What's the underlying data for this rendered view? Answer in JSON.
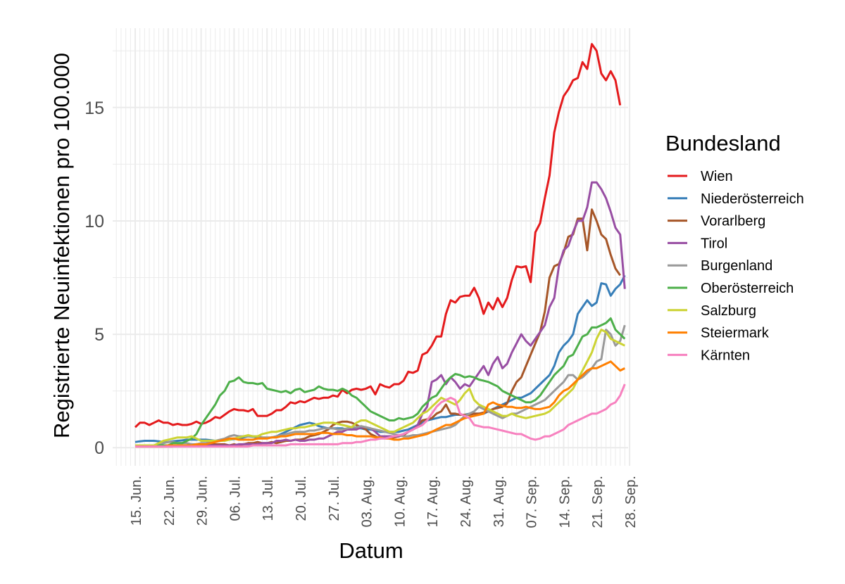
{
  "chart_data": {
    "type": "line",
    "xlabel": "Datum",
    "ylabel": "Registrierte Neuinfektionen pro 100.000",
    "ylim": [
      -0.8,
      18.5
    ],
    "y_ticks": [
      0,
      5,
      10,
      15
    ],
    "x_start_date": "2020-06-15",
    "x_end_date": "2020-09-26",
    "x_ticks": [
      "15. Jun.",
      "22. Jun.",
      "29. Jun.",
      "06. Jul.",
      "13. Jul.",
      "20. Jul.",
      "27. Jul.",
      "03. Aug.",
      "10. Aug.",
      "17. Aug.",
      "24. Aug.",
      "31. Aug.",
      "07. Sep.",
      "14. Sep.",
      "21. Sep.",
      "28. Sep."
    ],
    "grid": true,
    "legend": {
      "title": "Bundesland",
      "position": "right"
    },
    "series": [
      {
        "name": "Wien",
        "color": "#e41a1c",
        "values": [
          0.9,
          1.1,
          1.1,
          1.0,
          1.1,
          1.2,
          1.1,
          1.1,
          1.0,
          1.05,
          1.0,
          1.0,
          1.05,
          1.15,
          1.05,
          1.1,
          1.2,
          1.35,
          1.3,
          1.45,
          1.6,
          1.7,
          1.65,
          1.65,
          1.6,
          1.7,
          1.4,
          1.4,
          1.4,
          1.5,
          1.65,
          1.65,
          1.8,
          2.0,
          1.95,
          2.05,
          2.0,
          2.1,
          2.2,
          2.15,
          2.2,
          2.2,
          2.3,
          2.25,
          2.55,
          2.4,
          2.55,
          2.6,
          2.55,
          2.6,
          2.7,
          2.35,
          2.8,
          2.7,
          2.65,
          2.8,
          2.8,
          2.95,
          3.35,
          3.3,
          3.4,
          4.1,
          4.2,
          4.5,
          4.9,
          4.9,
          5.9,
          6.5,
          6.4,
          6.65,
          6.7,
          6.7,
          7.05,
          6.6,
          5.9,
          6.4,
          6.1,
          6.6,
          6.2,
          6.6,
          7.4,
          8.0,
          7.95,
          8.0,
          7.3,
          9.5,
          9.9,
          11.0,
          12.0,
          13.9,
          14.8,
          15.5,
          15.8,
          16.2,
          16.3,
          17.0,
          16.7,
          17.8,
          17.5,
          16.5,
          16.2,
          16.6,
          16.2,
          15.1
        ]
      },
      {
        "name": "Niederösterreich",
        "color": "#377eb8",
        "values": [
          0.25,
          0.28,
          0.3,
          0.3,
          0.3,
          0.28,
          0.25,
          0.25,
          0.28,
          0.3,
          0.32,
          0.35,
          0.35,
          0.35,
          0.35,
          0.35,
          0.33,
          0.3,
          0.3,
          0.32,
          0.35,
          0.38,
          0.4,
          0.45,
          0.5,
          0.48,
          0.45,
          0.42,
          0.42,
          0.45,
          0.5,
          0.6,
          0.7,
          0.8,
          0.9,
          1.0,
          1.05,
          1.1,
          1.05,
          0.95,
          0.9,
          0.85,
          0.85,
          0.85,
          0.85,
          0.8,
          0.8,
          0.85,
          0.85,
          0.8,
          0.8,
          0.75,
          0.7,
          0.7,
          0.7,
          0.7,
          0.7,
          0.75,
          0.8,
          0.9,
          1.0,
          1.1,
          1.2,
          1.25,
          1.3,
          1.35,
          1.35,
          1.4,
          1.45,
          1.45,
          1.45,
          1.5,
          1.5,
          1.5,
          1.5,
          1.6,
          1.7,
          1.8,
          1.9,
          2.0,
          2.1,
          2.2,
          2.2,
          2.3,
          2.4,
          2.6,
          2.8,
          3.0,
          3.2,
          3.6,
          4.2,
          4.5,
          4.7,
          5.0,
          5.9,
          6.2,
          6.5,
          6.25,
          6.4,
          7.25,
          7.2,
          6.7,
          7.0,
          7.2,
          7.6
        ]
      },
      {
        "name": "Vorarlberg",
        "color": "#a65628",
        "values": [
          0.05,
          0.05,
          0.05,
          0.05,
          0.05,
          0.05,
          0.05,
          0.05,
          0.05,
          0.1,
          0.1,
          0.1,
          0.1,
          0.1,
          0.15,
          0.15,
          0.15,
          0.15,
          0.15,
          0.15,
          0.1,
          0.15,
          0.1,
          0.15,
          0.2,
          0.2,
          0.25,
          0.2,
          0.2,
          0.25,
          0.2,
          0.25,
          0.3,
          0.3,
          0.35,
          0.35,
          0.4,
          0.5,
          0.55,
          0.6,
          0.7,
          0.8,
          1.0,
          1.1,
          1.15,
          1.15,
          1.1,
          1.0,
          0.9,
          0.8,
          0.6,
          0.5,
          0.4,
          0.45,
          0.4,
          0.45,
          0.5,
          0.55,
          0.7,
          0.8,
          1.0,
          1.2,
          1.25,
          1.3,
          1.5,
          1.6,
          1.9,
          1.5,
          1.5,
          1.45,
          1.45,
          1.45,
          1.5,
          1.5,
          1.55,
          1.6,
          1.7,
          1.75,
          1.8,
          1.95,
          2.5,
          2.9,
          3.1,
          3.6,
          4.1,
          4.6,
          5.1,
          6.0,
          7.5,
          8.0,
          8.1,
          8.6,
          9.3,
          9.4,
          10.1,
          10.1,
          8.7,
          10.5,
          10.0,
          9.4,
          9.2,
          8.5,
          7.9,
          7.6
        ]
      },
      {
        "name": "Tirol",
        "color": "#984ea3",
        "values": [
          0.1,
          0.1,
          0.1,
          0.1,
          0.1,
          0.1,
          0.1,
          0.1,
          0.1,
          0.1,
          0.1,
          0.1,
          0.1,
          0.1,
          0.1,
          0.1,
          0.1,
          0.1,
          0.1,
          0.1,
          0.1,
          0.1,
          0.15,
          0.15,
          0.15,
          0.15,
          0.15,
          0.2,
          0.2,
          0.2,
          0.3,
          0.3,
          0.35,
          0.3,
          0.35,
          0.3,
          0.3,
          0.35,
          0.35,
          0.4,
          0.4,
          0.5,
          0.6,
          0.7,
          0.7,
          0.8,
          0.8,
          0.8,
          0.9,
          0.9,
          0.85,
          0.7,
          0.5,
          0.5,
          0.5,
          0.5,
          0.5,
          0.6,
          0.7,
          0.8,
          1.0,
          1.5,
          1.8,
          2.9,
          3.0,
          3.2,
          2.8,
          3.1,
          2.9,
          2.6,
          2.8,
          2.7,
          3.0,
          3.3,
          3.6,
          3.2,
          3.7,
          4.0,
          3.5,
          3.7,
          4.2,
          4.6,
          5.0,
          4.7,
          4.5,
          4.8,
          5.1,
          5.4,
          6.2,
          6.6,
          8.0,
          8.7,
          8.9,
          9.5,
          10.0,
          10.0,
          10.6,
          11.7,
          11.7,
          11.4,
          11.0,
          10.4,
          9.7,
          9.4,
          7.0
        ]
      },
      {
        "name": "Burgenland",
        "color": "#999999",
        "values": [
          0.1,
          0.1,
          0.1,
          0.1,
          0.1,
          0.1,
          0.2,
          0.25,
          0.25,
          0.2,
          0.2,
          0.2,
          0.15,
          0.15,
          0.2,
          0.2,
          0.25,
          0.3,
          0.35,
          0.4,
          0.5,
          0.55,
          0.5,
          0.5,
          0.5,
          0.5,
          0.5,
          0.45,
          0.45,
          0.45,
          0.5,
          0.55,
          0.6,
          0.65,
          0.7,
          0.7,
          0.7,
          0.75,
          0.75,
          0.8,
          0.85,
          0.85,
          0.85,
          0.8,
          0.8,
          0.85,
          0.9,
          0.9,
          0.95,
          0.9,
          0.85,
          0.8,
          0.75,
          0.7,
          0.65,
          0.6,
          0.55,
          0.5,
          0.5,
          0.55,
          0.55,
          0.6,
          0.65,
          0.7,
          0.75,
          0.8,
          0.85,
          0.9,
          1.0,
          1.2,
          1.4,
          1.5,
          1.6,
          1.8,
          1.7,
          1.6,
          1.5,
          1.4,
          1.3,
          1.4,
          1.5,
          1.5,
          1.6,
          1.7,
          1.8,
          1.9,
          2.0,
          2.1,
          2.3,
          2.5,
          2.7,
          2.9,
          3.2,
          3.2,
          3.0,
          3.1,
          3.3,
          3.5,
          3.8,
          3.9,
          5.2,
          5.0,
          4.5,
          4.7,
          5.4
        ]
      },
      {
        "name": "Oberösterreich",
        "color": "#4daf4a",
        "values": [
          0.1,
          0.1,
          0.1,
          0.1,
          0.1,
          0.1,
          0.1,
          0.1,
          0.2,
          0.2,
          0.2,
          0.3,
          0.4,
          0.6,
          1.0,
          1.3,
          1.6,
          1.9,
          2.3,
          2.5,
          2.9,
          2.95,
          3.1,
          2.9,
          2.85,
          2.85,
          2.8,
          2.85,
          2.6,
          2.55,
          2.5,
          2.45,
          2.5,
          2.4,
          2.55,
          2.6,
          2.45,
          2.5,
          2.55,
          2.7,
          2.6,
          2.55,
          2.55,
          2.5,
          2.6,
          2.5,
          2.3,
          2.2,
          2.0,
          1.8,
          1.6,
          1.5,
          1.4,
          1.3,
          1.2,
          1.2,
          1.3,
          1.25,
          1.3,
          1.35,
          1.5,
          1.8,
          2.0,
          2.2,
          2.3,
          2.6,
          2.9,
          3.1,
          3.25,
          3.2,
          3.1,
          3.15,
          3.1,
          3.0,
          2.95,
          2.9,
          2.8,
          2.7,
          2.5,
          2.4,
          2.3,
          2.2,
          2.1,
          2.0,
          2.0,
          2.1,
          2.3,
          2.6,
          2.9,
          3.2,
          3.4,
          3.6,
          4.0,
          4.1,
          4.5,
          4.9,
          5.0,
          5.3,
          5.3,
          5.4,
          5.5,
          5.7,
          5.2,
          5.0,
          4.8
        ]
      },
      {
        "name": "Salzburg",
        "color": "#ccd333",
        "values": [
          0.1,
          0.1,
          0.1,
          0.1,
          0.1,
          0.2,
          0.3,
          0.35,
          0.4,
          0.45,
          0.45,
          0.45,
          0.5,
          0.4,
          0.3,
          0.3,
          0.3,
          0.3,
          0.3,
          0.3,
          0.35,
          0.4,
          0.45,
          0.5,
          0.55,
          0.5,
          0.5,
          0.6,
          0.65,
          0.7,
          0.7,
          0.75,
          0.8,
          0.85,
          0.85,
          0.9,
          0.9,
          0.95,
          1.0,
          1.05,
          1.1,
          1.1,
          1.1,
          1.05,
          1.0,
          0.95,
          0.9,
          1.1,
          1.2,
          1.2,
          1.1,
          1.0,
          0.9,
          0.8,
          0.7,
          0.7,
          0.8,
          0.9,
          1.0,
          1.1,
          1.3,
          1.5,
          1.6,
          1.8,
          2.0,
          2.2,
          2.1,
          2.0,
          1.9,
          2.1,
          2.4,
          2.6,
          2.1,
          1.9,
          1.8,
          1.7,
          1.6,
          1.5,
          1.4,
          1.4,
          1.5,
          1.4,
          1.35,
          1.3,
          1.35,
          1.4,
          1.45,
          1.5,
          1.6,
          1.8,
          2.0,
          2.2,
          2.4,
          2.6,
          3.0,
          3.4,
          3.8,
          4.2,
          4.8,
          5.2,
          5.1,
          4.8,
          4.7,
          4.6,
          4.5
        ]
      },
      {
        "name": "Steiermark",
        "color": "#ff7f00",
        "values": [
          0.05,
          0.05,
          0.05,
          0.05,
          0.05,
          0.05,
          0.05,
          0.1,
          0.1,
          0.1,
          0.1,
          0.1,
          0.1,
          0.15,
          0.15,
          0.15,
          0.2,
          0.25,
          0.3,
          0.35,
          0.4,
          0.4,
          0.35,
          0.35,
          0.35,
          0.35,
          0.4,
          0.4,
          0.4,
          0.45,
          0.45,
          0.5,
          0.5,
          0.55,
          0.6,
          0.6,
          0.6,
          0.6,
          0.6,
          0.65,
          0.65,
          0.65,
          0.6,
          0.6,
          0.6,
          0.55,
          0.55,
          0.5,
          0.5,
          0.5,
          0.5,
          0.45,
          0.45,
          0.4,
          0.4,
          0.35,
          0.35,
          0.4,
          0.4,
          0.45,
          0.5,
          0.55,
          0.6,
          0.7,
          0.8,
          0.9,
          1.0,
          1.0,
          1.1,
          1.2,
          1.3,
          1.35,
          1.4,
          1.45,
          1.5,
          1.9,
          2.0,
          1.9,
          1.85,
          1.8,
          1.8,
          1.75,
          1.75,
          1.8,
          1.75,
          1.7,
          1.7,
          1.75,
          1.8,
          2.0,
          2.3,
          2.5,
          2.6,
          2.8,
          3.0,
          3.2,
          3.4,
          3.5,
          3.5,
          3.6,
          3.7,
          3.8,
          3.6,
          3.4,
          3.5
        ]
      },
      {
        "name": "Kärnten",
        "color": "#f781bf",
        "values": [
          0.05,
          0.05,
          0.05,
          0.05,
          0.05,
          0.05,
          0.05,
          0.05,
          0.05,
          0.05,
          0.05,
          0.05,
          0.05,
          0.05,
          0.05,
          0.05,
          0.05,
          0.05,
          0.05,
          0.05,
          0.05,
          0.05,
          0.05,
          0.05,
          0.05,
          0.1,
          0.1,
          0.1,
          0.1,
          0.1,
          0.1,
          0.1,
          0.1,
          0.15,
          0.15,
          0.15,
          0.15,
          0.15,
          0.15,
          0.15,
          0.15,
          0.15,
          0.15,
          0.15,
          0.2,
          0.2,
          0.2,
          0.25,
          0.25,
          0.3,
          0.35,
          0.35,
          0.4,
          0.4,
          0.45,
          0.5,
          0.55,
          0.6,
          0.7,
          0.8,
          0.9,
          1.0,
          1.2,
          1.5,
          1.8,
          2.0,
          2.1,
          2.2,
          2.1,
          1.5,
          1.4,
          1.3,
          1.0,
          0.95,
          0.9,
          0.9,
          0.85,
          0.8,
          0.75,
          0.7,
          0.65,
          0.6,
          0.6,
          0.5,
          0.4,
          0.35,
          0.4,
          0.5,
          0.5,
          0.6,
          0.7,
          0.8,
          1.0,
          1.1,
          1.2,
          1.3,
          1.4,
          1.5,
          1.5,
          1.6,
          1.7,
          1.9,
          2.0,
          2.3,
          2.8
        ]
      }
    ]
  }
}
